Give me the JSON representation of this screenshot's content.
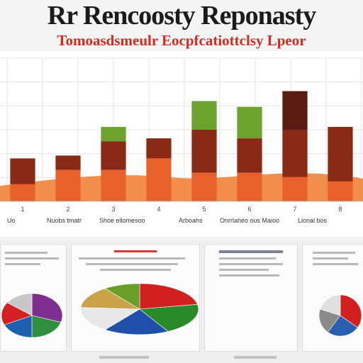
{
  "header": {
    "title": "Rr Rencoosty Reponasty",
    "subtitle": "Tomoasdsmeulr Eocpfcatiottclsy Lpeor"
  },
  "chart_data": {
    "type": "bar",
    "title": "Rr Rencoosty Reponasty",
    "subtitle": "Tomoasdsmeulr Eocpfcatiottclsy Lpeor",
    "xlabel": "",
    "ylabel": "",
    "ylim": [
      0,
      100
    ],
    "grid": true,
    "legend": "bottom",
    "categories": [
      "1",
      "2",
      "3",
      "4",
      "5",
      "6",
      "7",
      "8"
    ],
    "series": [
      {
        "name": "",
        "color": "#e8612a",
        "values": [
          12,
          22,
          22,
          30,
          20,
          20,
          17,
          14
        ]
      },
      {
        "name": "",
        "color": "#8a2a16",
        "values": [
          18,
          10,
          20,
          14,
          30,
          24,
          33,
          38
        ]
      },
      {
        "name": "",
        "color": "#6ea22f",
        "values": [
          0,
          0,
          10,
          0,
          20,
          22,
          0,
          0
        ]
      },
      {
        "name": "",
        "color": "#5a1c12",
        "values": [
          0,
          0,
          0,
          0,
          0,
          0,
          27,
          0
        ]
      }
    ],
    "legend_labels": [
      "Uo",
      "Nuobs tmatr",
      "Shoe ellomesoo",
      "Arboahs",
      "Onrrlaheo ous Maioo",
      "Lional bos"
    ]
  },
  "pies": [
    {
      "slices": [
        30,
        20,
        18,
        17,
        15
      ],
      "colors": [
        "#7f2f8f",
        "#2f8f3f",
        "#1f5fb0",
        "#d32020",
        "#c8c8c8"
      ]
    },
    {
      "slices": [
        22,
        20,
        18,
        16,
        14,
        10
      ],
      "colors": [
        "#d21f1f",
        "#2a8a2a",
        "#1f4fa8",
        "#e8e8e8",
        "#c9a24a",
        "#6a9e2a"
      ]
    },
    {
      "slices": [
        35,
        25,
        20,
        20
      ],
      "colors": [
        "#d21f1f",
        "#2a5fb0",
        "#8a8a8a",
        "#e0e0e0"
      ]
    }
  ],
  "colors": {
    "title": "#1b1b1b",
    "subtitle": "#d42a1f",
    "accent": "#e8612a"
  }
}
